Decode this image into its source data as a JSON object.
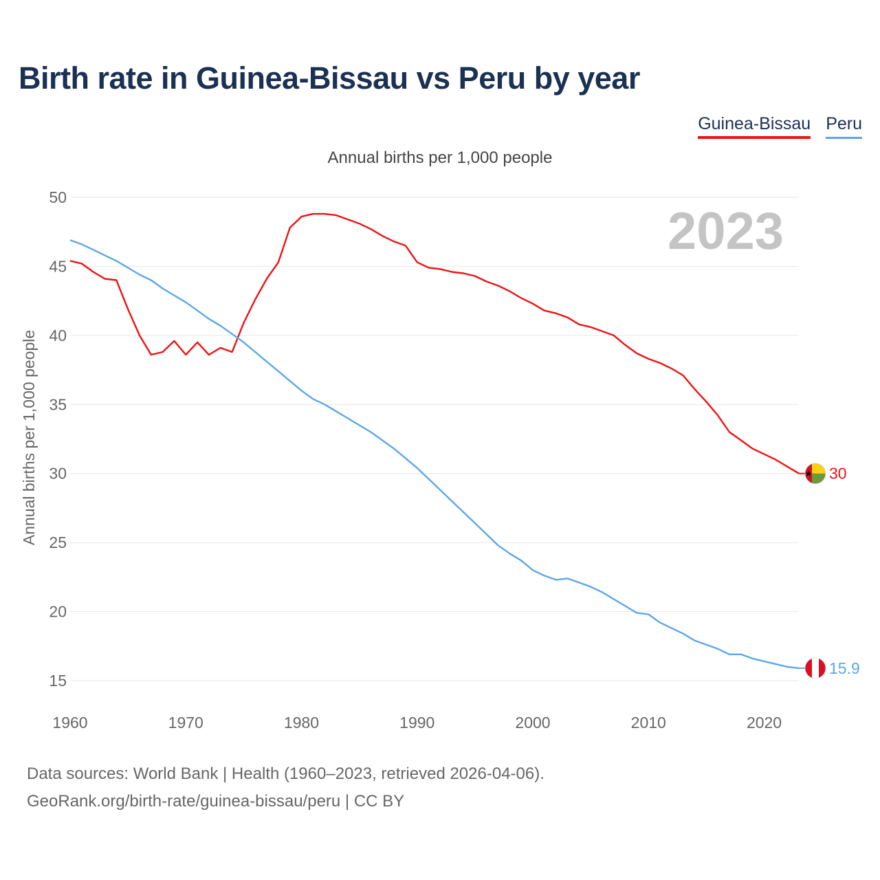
{
  "title": "Birth rate in Guinea-Bissau vs Peru by year",
  "subtitle": "Annual births per 1,000 people",
  "source_line1": "Data sources: World Bank | Health (1960–2023, retrieved 2026-04-06).",
  "source_line2": "GeoRank.org/birth-rate/guinea-bissau/peru | CC BY",
  "legend": [
    {
      "name": "Guinea-Bissau",
      "color": "#ee1111"
    },
    {
      "name": "Peru",
      "color": "#5aa7ea"
    }
  ],
  "chart_data": {
    "type": "line",
    "title": "Birth rate in Guinea-Bissau vs Peru by year",
    "subtitle": "Annual births per 1,000 people",
    "xlabel": "",
    "ylabel": "Annual births per 1,000 people",
    "xlim": [
      1960,
      2023
    ],
    "ylim": [
      15,
      50
    ],
    "xticks": [
      1960,
      1970,
      1980,
      1990,
      2000,
      2010,
      2020
    ],
    "yticks": [
      15,
      20,
      25,
      30,
      35,
      40,
      45,
      50
    ],
    "grid": true,
    "year_label": "2023",
    "x": [
      1960,
      1961,
      1962,
      1963,
      1964,
      1965,
      1966,
      1967,
      1968,
      1969,
      1970,
      1971,
      1972,
      1973,
      1974,
      1975,
      1976,
      1977,
      1978,
      1979,
      1980,
      1981,
      1982,
      1983,
      1984,
      1985,
      1986,
      1987,
      1988,
      1989,
      1990,
      1991,
      1992,
      1993,
      1994,
      1995,
      1996,
      1997,
      1998,
      1999,
      2000,
      2001,
      2002,
      2003,
      2004,
      2005,
      2006,
      2007,
      2008,
      2009,
      2010,
      2011,
      2012,
      2013,
      2014,
      2015,
      2016,
      2017,
      2018,
      2019,
      2020,
      2021,
      2022,
      2023
    ],
    "series": [
      {
        "name": "Guinea-Bissau",
        "color": "#ee1111",
        "end_label": "30",
        "values": [
          45.4,
          45.2,
          44.6,
          44.1,
          44.0,
          41.9,
          40.0,
          38.6,
          38.8,
          39.6,
          38.6,
          39.5,
          38.6,
          39.1,
          38.8,
          40.9,
          42.6,
          44.1,
          45.3,
          47.8,
          48.6,
          48.8,
          48.8,
          48.7,
          48.4,
          48.1,
          47.7,
          47.2,
          46.8,
          46.5,
          45.3,
          44.9,
          44.8,
          44.6,
          44.5,
          44.3,
          43.9,
          43.6,
          43.2,
          42.7,
          42.3,
          41.8,
          41.6,
          41.3,
          40.8,
          40.6,
          40.3,
          40.0,
          39.3,
          38.7,
          38.3,
          38.0,
          37.6,
          37.1,
          36.1,
          35.2,
          34.2,
          33.0,
          32.4,
          31.8,
          31.4,
          31.0,
          30.5,
          30.0
        ]
      },
      {
        "name": "Peru",
        "color": "#5aa7ea",
        "end_label": "15.9",
        "values": [
          46.9,
          46.6,
          46.2,
          45.8,
          45.4,
          44.9,
          44.4,
          44.0,
          43.4,
          42.9,
          42.4,
          41.8,
          41.2,
          40.7,
          40.1,
          39.5,
          38.8,
          38.1,
          37.4,
          36.7,
          36.0,
          35.4,
          35.0,
          34.5,
          34.0,
          33.5,
          33.0,
          32.4,
          31.8,
          31.1,
          30.4,
          29.6,
          28.8,
          28.0,
          27.2,
          26.4,
          25.6,
          24.8,
          24.2,
          23.7,
          23.0,
          22.6,
          22.3,
          22.4,
          22.1,
          21.8,
          21.4,
          20.9,
          20.4,
          19.9,
          19.8,
          19.2,
          18.8,
          18.4,
          17.9,
          17.6,
          17.3,
          16.9,
          16.9,
          16.6,
          16.4,
          16.2,
          16.0,
          15.9
        ]
      }
    ]
  }
}
